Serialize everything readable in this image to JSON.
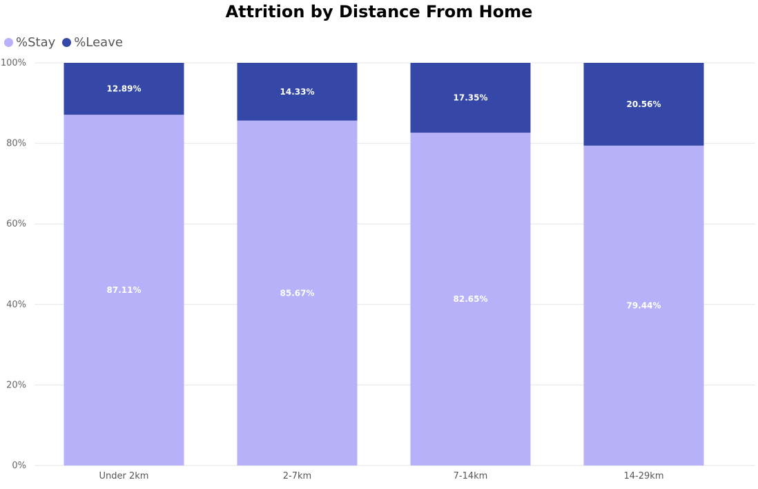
{
  "chart_data": {
    "type": "bar",
    "stacked": true,
    "title": "Attrition by Distance From Home",
    "categories": [
      "Under 2km",
      "2-7km",
      "7-14km",
      "14-29km"
    ],
    "series": [
      {
        "name": "%Stay",
        "color": "#b6b1f8",
        "values": [
          87.11,
          85.67,
          82.65,
          79.44
        ],
        "labels": [
          "87.11%",
          "85.67%",
          "82.65%",
          "79.44%"
        ]
      },
      {
        "name": "%Leave",
        "color": "#3548a8",
        "values": [
          12.89,
          14.33,
          17.35,
          20.56
        ],
        "labels": [
          "12.89%",
          "14.33%",
          "17.35%",
          "20.56%"
        ]
      }
    ],
    "ylim": [
      0,
      100
    ],
    "yticks": [
      "0%",
      "20%",
      "40%",
      "60%",
      "80%",
      "100%"
    ],
    "grid": true,
    "legend_position": "top-left"
  }
}
